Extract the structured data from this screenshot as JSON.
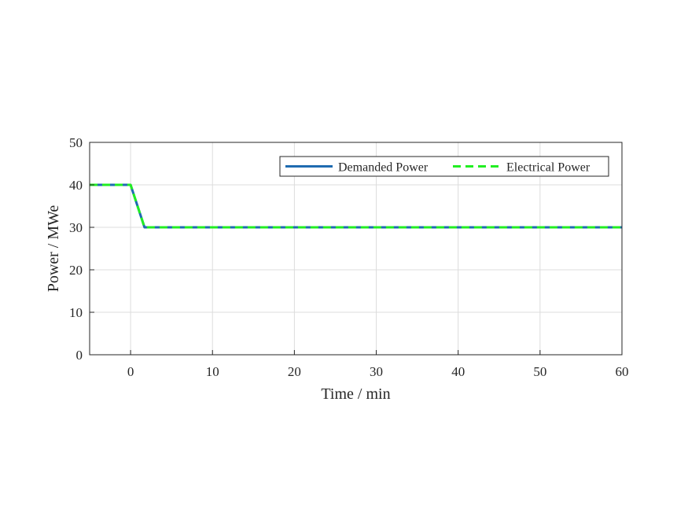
{
  "chart_data": {
    "type": "line",
    "xlabel": "Time / min",
    "ylabel": "Power / MWe",
    "xlim": [
      -5,
      60
    ],
    "ylim": [
      0,
      50
    ],
    "xticks": [
      0,
      10,
      20,
      30,
      40,
      50,
      60
    ],
    "yticks": [
      0,
      10,
      20,
      30,
      40,
      50
    ],
    "grid": true,
    "legend_position": "top-right",
    "series": [
      {
        "name": "Demanded Power",
        "color": "#1f6bb0",
        "style": "solid",
        "x": [
          -5,
          0,
          1.7,
          60
        ],
        "y": [
          40,
          40,
          30,
          30
        ]
      },
      {
        "name": "Electrical Power",
        "color": "#22ee22",
        "style": "dashed",
        "x": [
          -5,
          0,
          1.7,
          60
        ],
        "y": [
          40,
          40,
          30,
          30
        ]
      }
    ]
  }
}
